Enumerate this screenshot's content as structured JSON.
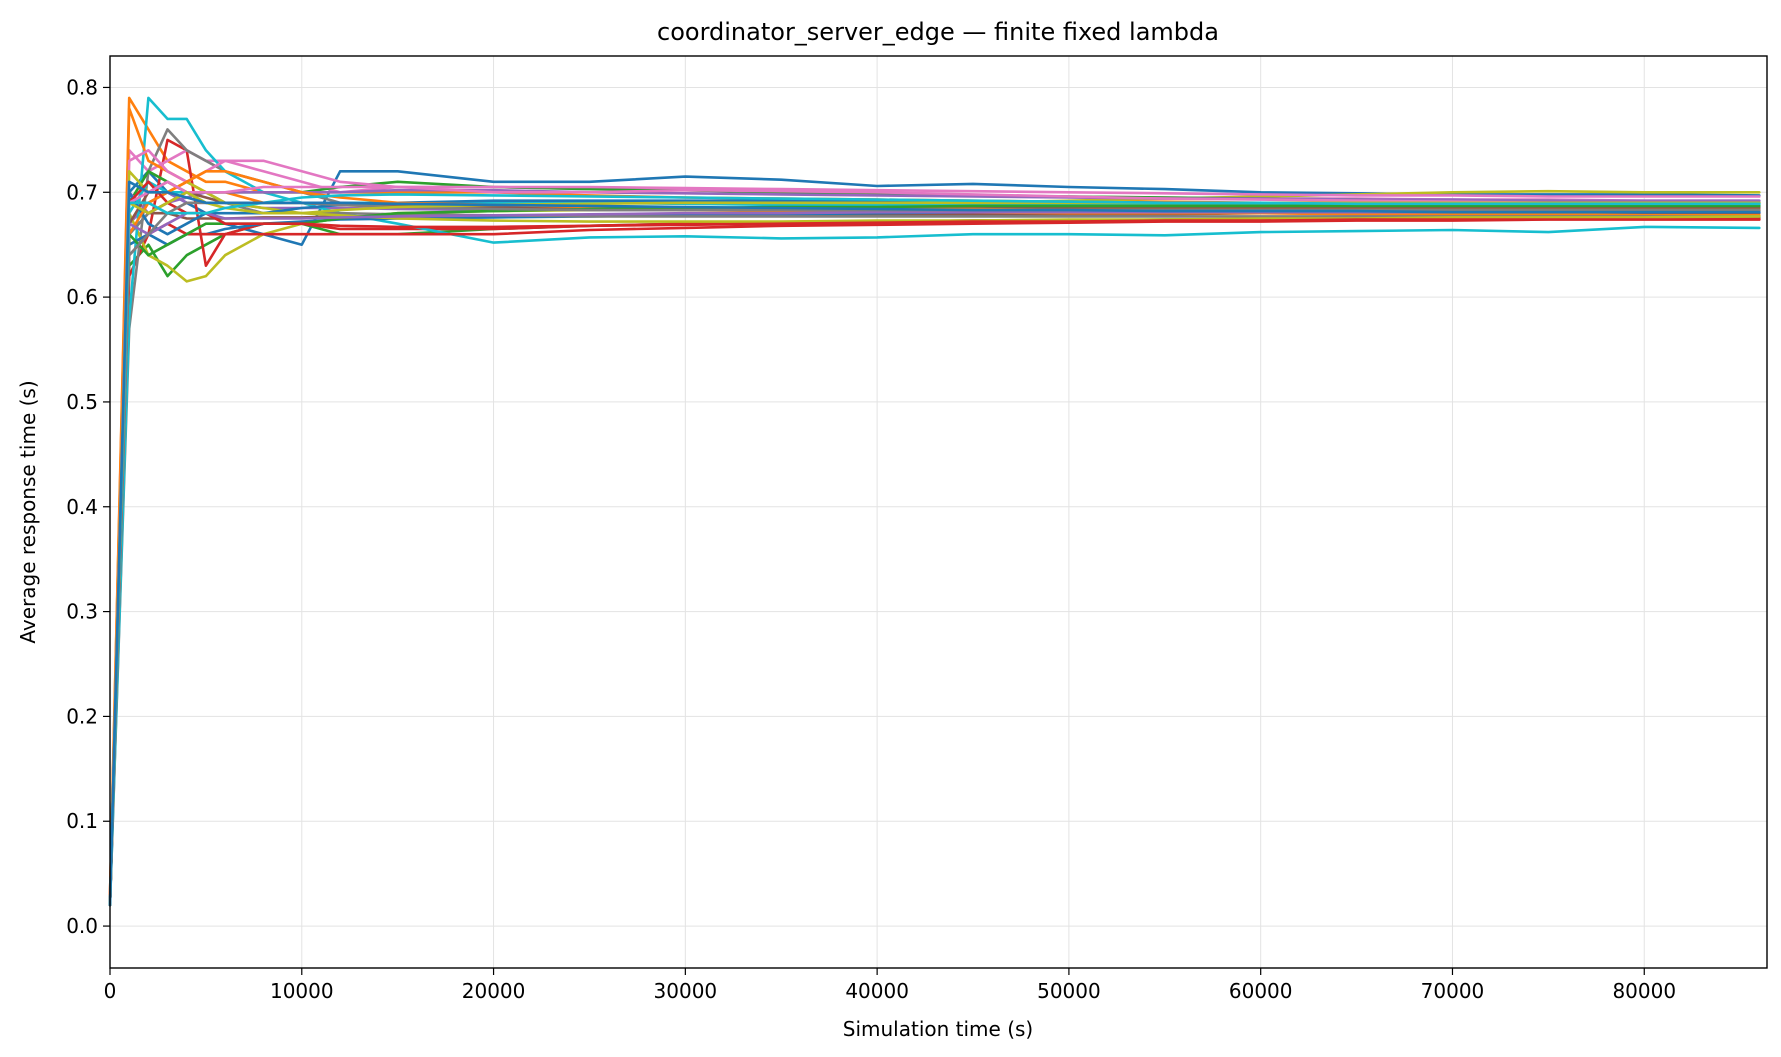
{
  "chart_data": {
    "type": "line",
    "title": "coordinator_server_edge — finite fixed lambda",
    "xlabel": "Simulation time (s)",
    "ylabel": "Average response time (s)",
    "xlim": [
      0,
      86400
    ],
    "ylim": [
      -0.04,
      0.83
    ],
    "xticks": [
      0,
      10000,
      20000,
      30000,
      40000,
      50000,
      60000,
      70000,
      80000
    ],
    "yticks": [
      0.0,
      0.1,
      0.2,
      0.3,
      0.4,
      0.5,
      0.6,
      0.7,
      0.8
    ],
    "xtick_labels": [
      "0",
      "10000",
      "20000",
      "30000",
      "40000",
      "50000",
      "60000",
      "70000",
      "80000"
    ],
    "ytick_labels": [
      "0.0",
      "0.1",
      "0.2",
      "0.3",
      "0.4",
      "0.5",
      "0.6",
      "0.7",
      "0.8"
    ],
    "grid": true,
    "legend": "none",
    "x": [
      0,
      1000,
      2000,
      3000,
      4000,
      5000,
      6000,
      8000,
      10000,
      12000,
      15000,
      20000,
      25000,
      30000,
      35000,
      40000,
      45000,
      50000,
      55000,
      60000,
      65000,
      70000,
      75000,
      80000,
      86000
    ],
    "series": [
      {
        "color": "#1f77b4",
        "values": [
          0.02,
          0.7,
          0.72,
          0.7,
          0.69,
          0.68,
          0.67,
          0.66,
          0.65,
          0.72,
          0.72,
          0.71,
          0.71,
          0.715,
          0.712,
          0.706,
          0.708,
          0.705,
          0.703,
          0.7,
          0.699,
          0.698,
          0.698,
          0.698,
          0.697
        ]
      },
      {
        "color": "#ff7f0e",
        "values": [
          0.03,
          0.79,
          0.76,
          0.73,
          0.72,
          0.71,
          0.71,
          0.7,
          0.7,
          0.7,
          0.7,
          0.7,
          0.697,
          0.695,
          0.694,
          0.693,
          0.692,
          0.691,
          0.691,
          0.69,
          0.69,
          0.689,
          0.689,
          0.689,
          0.689
        ]
      },
      {
        "color": "#2ca02c",
        "values": [
          0.02,
          0.63,
          0.65,
          0.62,
          0.64,
          0.65,
          0.66,
          0.67,
          0.67,
          0.66,
          0.66,
          0.665,
          0.668,
          0.67,
          0.671,
          0.672,
          0.673,
          0.673,
          0.674,
          0.674,
          0.675,
          0.675,
          0.675,
          0.676,
          0.676
        ]
      },
      {
        "color": "#d62728",
        "values": [
          0.02,
          0.62,
          0.66,
          0.75,
          0.74,
          0.63,
          0.66,
          0.67,
          0.67,
          0.665,
          0.665,
          0.665,
          0.668,
          0.67,
          0.671,
          0.672,
          0.673,
          0.673,
          0.673,
          0.674,
          0.674,
          0.675,
          0.675,
          0.675,
          0.675
        ]
      },
      {
        "color": "#9467bd",
        "values": [
          0.02,
          0.67,
          0.69,
          0.7,
          0.69,
          0.69,
          0.69,
          0.685,
          0.685,
          0.685,
          0.684,
          0.683,
          0.683,
          0.683,
          0.683,
          0.683,
          0.683,
          0.683,
          0.683,
          0.683,
          0.683,
          0.683,
          0.683,
          0.683,
          0.683
        ]
      },
      {
        "color": "#8c564b",
        "values": [
          0.02,
          0.66,
          0.68,
          0.68,
          0.675,
          0.675,
          0.675,
          0.676,
          0.676,
          0.677,
          0.677,
          0.677,
          0.678,
          0.678,
          0.678,
          0.679,
          0.679,
          0.679,
          0.679,
          0.68,
          0.68,
          0.68,
          0.68,
          0.68,
          0.68
        ]
      },
      {
        "color": "#e377c2",
        "values": [
          0.03,
          0.74,
          0.72,
          0.73,
          0.74,
          0.73,
          0.73,
          0.72,
          0.71,
          0.7,
          0.705,
          0.705,
          0.703,
          0.702,
          0.7,
          0.698,
          0.697,
          0.696,
          0.695,
          0.694,
          0.694,
          0.693,
          0.693,
          0.692,
          0.692
        ]
      },
      {
        "color": "#7f7f7f",
        "values": [
          0.02,
          0.57,
          0.72,
          0.76,
          0.74,
          0.73,
          0.72,
          0.71,
          0.7,
          0.69,
          0.69,
          0.686,
          0.685,
          0.684,
          0.684,
          0.683,
          0.683,
          0.683,
          0.682,
          0.682,
          0.682,
          0.682,
          0.682,
          0.682,
          0.682
        ]
      },
      {
        "color": "#bcbd22",
        "values": [
          0.02,
          0.68,
          0.64,
          0.63,
          0.615,
          0.62,
          0.64,
          0.66,
          0.67,
          0.675,
          0.68,
          0.682,
          0.683,
          0.684,
          0.685,
          0.688,
          0.69,
          0.692,
          0.694,
          0.696,
          0.698,
          0.7,
          0.701,
          0.7,
          0.7
        ]
      },
      {
        "color": "#17becf",
        "values": [
          0.02,
          0.58,
          0.79,
          0.77,
          0.77,
          0.74,
          0.72,
          0.7,
          0.69,
          0.68,
          0.67,
          0.652,
          0.657,
          0.658,
          0.656,
          0.657,
          0.66,
          0.66,
          0.659,
          0.662,
          0.663,
          0.664,
          0.662,
          0.667,
          0.666
        ]
      },
      {
        "color": "#1f77b4",
        "values": [
          0.02,
          0.65,
          0.66,
          0.65,
          0.66,
          0.66,
          0.665,
          0.67,
          0.672,
          0.674,
          0.675,
          0.676,
          0.677,
          0.678,
          0.679,
          0.68,
          0.681,
          0.682,
          0.682,
          0.683,
          0.684,
          0.684,
          0.685,
          0.685,
          0.686
        ]
      },
      {
        "color": "#ff7f0e",
        "values": [
          0.03,
          0.78,
          0.73,
          0.72,
          0.71,
          0.7,
          0.7,
          0.69,
          0.69,
          0.688,
          0.686,
          0.685,
          0.684,
          0.683,
          0.682,
          0.682,
          0.681,
          0.68,
          0.68,
          0.68,
          0.679,
          0.679,
          0.679,
          0.678,
          0.678
        ]
      },
      {
        "color": "#2ca02c",
        "values": [
          0.02,
          0.69,
          0.72,
          0.71,
          0.7,
          0.7,
          0.7,
          0.7,
          0.7,
          0.705,
          0.71,
          0.705,
          0.703,
          0.702,
          0.7,
          0.698,
          0.697,
          0.696,
          0.695,
          0.694,
          0.693,
          0.692,
          0.692,
          0.691,
          0.69
        ]
      },
      {
        "color": "#d62728",
        "values": [
          0.02,
          0.64,
          0.66,
          0.67,
          0.66,
          0.66,
          0.66,
          0.66,
          0.66,
          0.66,
          0.66,
          0.66,
          0.664,
          0.666,
          0.668,
          0.669,
          0.67,
          0.671,
          0.672,
          0.672,
          0.673,
          0.673,
          0.674,
          0.674,
          0.674
        ]
      },
      {
        "color": "#9467bd",
        "values": [
          0.02,
          0.7,
          0.68,
          0.69,
          0.695,
          0.7,
          0.7,
          0.7,
          0.7,
          0.7,
          0.702,
          0.702,
          0.7,
          0.699,
          0.698,
          0.697,
          0.696,
          0.695,
          0.694,
          0.694,
          0.693,
          0.693,
          0.692,
          0.692,
          0.692
        ]
      },
      {
        "color": "#8c564b",
        "values": [
          0.02,
          0.67,
          0.7,
          0.71,
          0.7,
          0.695,
          0.69,
          0.69,
          0.69,
          0.688,
          0.687,
          0.686,
          0.685,
          0.685,
          0.685,
          0.685,
          0.685,
          0.685,
          0.685,
          0.685,
          0.685,
          0.685,
          0.685,
          0.685,
          0.685
        ]
      },
      {
        "color": "#e377c2",
        "values": [
          0.02,
          0.73,
          0.74,
          0.72,
          0.71,
          0.72,
          0.73,
          0.73,
          0.72,
          0.71,
          0.705,
          0.7,
          0.7,
          0.702,
          0.701,
          0.7,
          0.698,
          0.696,
          0.694,
          0.693,
          0.692,
          0.691,
          0.69,
          0.69,
          0.689
        ]
      },
      {
        "color": "#7f7f7f",
        "values": [
          0.02,
          0.66,
          0.68,
          0.69,
          0.7,
          0.7,
          0.69,
          0.68,
          0.68,
          0.68,
          0.679,
          0.678,
          0.677,
          0.677,
          0.677,
          0.677,
          0.677,
          0.677,
          0.677,
          0.677,
          0.677,
          0.677,
          0.677,
          0.677,
          0.677
        ]
      },
      {
        "color": "#bcbd22",
        "values": [
          0.02,
          0.72,
          0.7,
          0.7,
          0.71,
          0.7,
          0.69,
          0.685,
          0.68,
          0.678,
          0.675,
          0.673,
          0.672,
          0.672,
          0.672,
          0.673,
          0.673,
          0.674,
          0.674,
          0.675,
          0.675,
          0.676,
          0.676,
          0.676,
          0.677
        ]
      },
      {
        "color": "#17becf",
        "values": [
          0.02,
          0.68,
          0.71,
          0.7,
          0.7,
          0.69,
          0.69,
          0.69,
          0.69,
          0.69,
          0.69,
          0.69,
          0.69,
          0.689,
          0.688,
          0.688,
          0.688,
          0.688,
          0.688,
          0.688,
          0.688,
          0.688,
          0.688,
          0.688,
          0.688
        ]
      },
      {
        "color": "#1f77b4",
        "values": [
          0.02,
          0.7,
          0.67,
          0.66,
          0.67,
          0.68,
          0.68,
          0.68,
          0.685,
          0.688,
          0.69,
          0.692,
          0.692,
          0.692,
          0.692,
          0.691,
          0.691,
          0.691,
          0.69,
          0.69,
          0.69,
          0.69,
          0.69,
          0.69,
          0.69
        ]
      },
      {
        "color": "#ff7f0e",
        "values": [
          0.02,
          0.66,
          0.69,
          0.7,
          0.71,
          0.72,
          0.72,
          0.71,
          0.7,
          0.695,
          0.69,
          0.688,
          0.686,
          0.685,
          0.685,
          0.684,
          0.684,
          0.683,
          0.683,
          0.683,
          0.683,
          0.683,
          0.683,
          0.683,
          0.683
        ]
      },
      {
        "color": "#2ca02c",
        "values": [
          0.02,
          0.66,
          0.64,
          0.65,
          0.66,
          0.67,
          0.67,
          0.67,
          0.67,
          0.675,
          0.68,
          0.682,
          0.684,
          0.685,
          0.686,
          0.686,
          0.687,
          0.687,
          0.687,
          0.687,
          0.687,
          0.687,
          0.687,
          0.687,
          0.687
        ]
      },
      {
        "color": "#d62728",
        "values": [
          0.02,
          0.69,
          0.71,
          0.69,
          0.68,
          0.68,
          0.67,
          0.67,
          0.67,
          0.668,
          0.667,
          0.667,
          0.668,
          0.669,
          0.67,
          0.671,
          0.672,
          0.672,
          0.673,
          0.673,
          0.674,
          0.674,
          0.674,
          0.674,
          0.674
        ]
      },
      {
        "color": "#9467bd",
        "values": [
          0.02,
          0.67,
          0.66,
          0.67,
          0.68,
          0.68,
          0.675,
          0.675,
          0.675,
          0.676,
          0.677,
          0.678,
          0.679,
          0.68,
          0.68,
          0.681,
          0.681,
          0.681,
          0.681,
          0.681,
          0.681,
          0.681,
          0.681,
          0.681,
          0.681
        ]
      },
      {
        "color": "#e377c2",
        "values": [
          0.02,
          0.69,
          0.7,
          0.71,
          0.7,
          0.7,
          0.7,
          0.705,
          0.705,
          0.705,
          0.705,
          0.705,
          0.705,
          0.704,
          0.703,
          0.702,
          0.701,
          0.7,
          0.699,
          0.698,
          0.697,
          0.697,
          0.696,
          0.696,
          0.696
        ]
      },
      {
        "color": "#7f7f7f",
        "values": [
          0.02,
          0.64,
          0.66,
          0.68,
          0.69,
          0.69,
          0.69,
          0.69,
          0.69,
          0.688,
          0.686,
          0.684,
          0.683,
          0.683,
          0.683,
          0.683,
          0.683,
          0.683,
          0.683,
          0.683,
          0.683,
          0.683,
          0.683,
          0.683,
          0.683
        ]
      },
      {
        "color": "#bcbd22",
        "values": [
          0.02,
          0.69,
          0.68,
          0.69,
          0.7,
          0.69,
          0.685,
          0.68,
          0.68,
          0.683,
          0.686,
          0.688,
          0.689,
          0.69,
          0.69,
          0.69,
          0.69,
          0.69,
          0.69,
          0.69,
          0.69,
          0.69,
          0.69,
          0.69,
          0.69
        ]
      },
      {
        "color": "#17becf",
        "values": [
          0.02,
          0.69,
          0.69,
          0.68,
          0.68,
          0.68,
          0.685,
          0.69,
          0.695,
          0.697,
          0.698,
          0.697,
          0.696,
          0.695,
          0.694,
          0.693,
          0.692,
          0.691,
          0.69,
          0.69,
          0.689,
          0.689,
          0.689,
          0.689,
          0.689
        ]
      },
      {
        "color": "#1f77b4",
        "values": [
          0.02,
          0.71,
          0.7,
          0.7,
          0.695,
          0.69,
          0.69,
          0.69,
          0.69,
          0.69,
          0.689,
          0.688,
          0.687,
          0.686,
          0.685,
          0.684,
          0.683,
          0.683,
          0.682,
          0.682,
          0.682,
          0.681,
          0.681,
          0.681,
          0.681
        ]
      }
    ]
  }
}
